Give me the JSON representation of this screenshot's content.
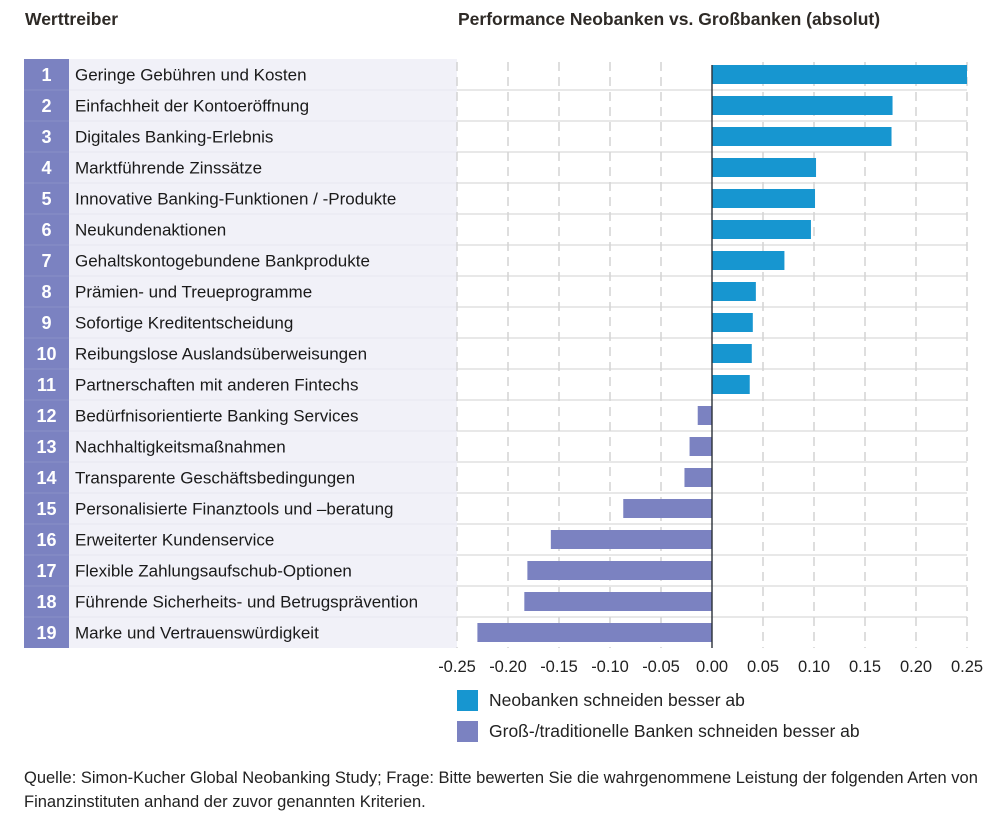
{
  "header": {
    "left_title": "Werttreiber",
    "right_title": "Performance Neobanken vs. Großbanken (absolut)"
  },
  "colors": {
    "positive": "#1796d0",
    "negative": "#7b82c1",
    "number_column": "#7b82c1",
    "label_column": "#f1f1f8"
  },
  "chart_data": {
    "type": "bar",
    "orientation": "horizontal",
    "title": "Performance Neobanken vs. Großbanken (absolut)",
    "category_header": "Werttreiber",
    "xlabel": "",
    "ylabel": "",
    "xlim": [
      -0.25,
      0.25
    ],
    "xticks": [
      -0.25,
      -0.2,
      -0.15,
      -0.1,
      -0.05,
      0.0,
      0.05,
      0.1,
      0.15,
      0.2,
      0.25
    ],
    "xtick_labels": [
      "-0.25",
      "-0.20",
      "-0.15",
      "-0.10",
      "-0.05",
      "0.00",
      "0.05",
      "0.10",
      "0.15",
      "0.20",
      "0.25"
    ],
    "grid": "vertical dashed",
    "categories": [
      {
        "rank": "1",
        "label": "Geringe Gebühren und Kosten",
        "value": 0.25
      },
      {
        "rank": "2",
        "label": "Einfachheit der Kontoeröffnung",
        "value": 0.177
      },
      {
        "rank": "3",
        "label": "Digitales Banking-Erlebnis",
        "value": 0.176
      },
      {
        "rank": "4",
        "label": "Marktführende Zinssätze",
        "value": 0.102
      },
      {
        "rank": "5",
        "label": "Innovative Banking-Funktionen / -Produkte",
        "value": 0.101
      },
      {
        "rank": "6",
        "label": "Neukundenaktionen",
        "value": 0.097
      },
      {
        "rank": "7",
        "label": "Gehaltskontogebundene Bankprodukte",
        "value": 0.071
      },
      {
        "rank": "8",
        "label": "Prämien- und Treueprogramme",
        "value": 0.043
      },
      {
        "rank": "9",
        "label": "Sofortige Kreditentscheidung",
        "value": 0.04
      },
      {
        "rank": "10",
        "label": "Reibungslose Auslandsüberweisungen",
        "value": 0.039
      },
      {
        "rank": "11",
        "label": "Partnerschaften mit anderen Fintechs",
        "value": 0.037
      },
      {
        "rank": "12",
        "label": "Bedürfnisorientierte Banking Services",
        "value": -0.014
      },
      {
        "rank": "13",
        "label": "Nachhaltigkeitsmaßnahmen",
        "value": -0.022
      },
      {
        "rank": "14",
        "label": "Transparente Geschäftsbedingungen",
        "value": -0.027
      },
      {
        "rank": "15",
        "label": "Personalisierte Finanztools und –beratung",
        "value": -0.087
      },
      {
        "rank": "16",
        "label": "Erweiterter Kundenservice",
        "value": -0.158
      },
      {
        "rank": "17",
        "label": "Flexible Zahlungsaufschub-Optionen",
        "value": -0.181
      },
      {
        "rank": "18",
        "label": "Führende Sicherheits- und Betrugsprävention",
        "value": -0.184
      },
      {
        "rank": "19",
        "label": "Marke und Vertrauenswürdigkeit",
        "value": -0.23
      }
    ],
    "legend": [
      {
        "label": "Neobanken schneiden besser ab",
        "color": "#1796d0"
      },
      {
        "label": "Groß-/traditionelle Banken schneiden besser ab",
        "color": "#7b82c1"
      }
    ],
    "legend_position": "bottom"
  },
  "footer": {
    "source": "Quelle: Simon-Kucher Global Neobanking Study; Frage: Bitte bewerten Sie die wahrgenommene Leistung der folgenden Arten von Finanzinstituten anhand der zuvor genannten Kriterien."
  }
}
